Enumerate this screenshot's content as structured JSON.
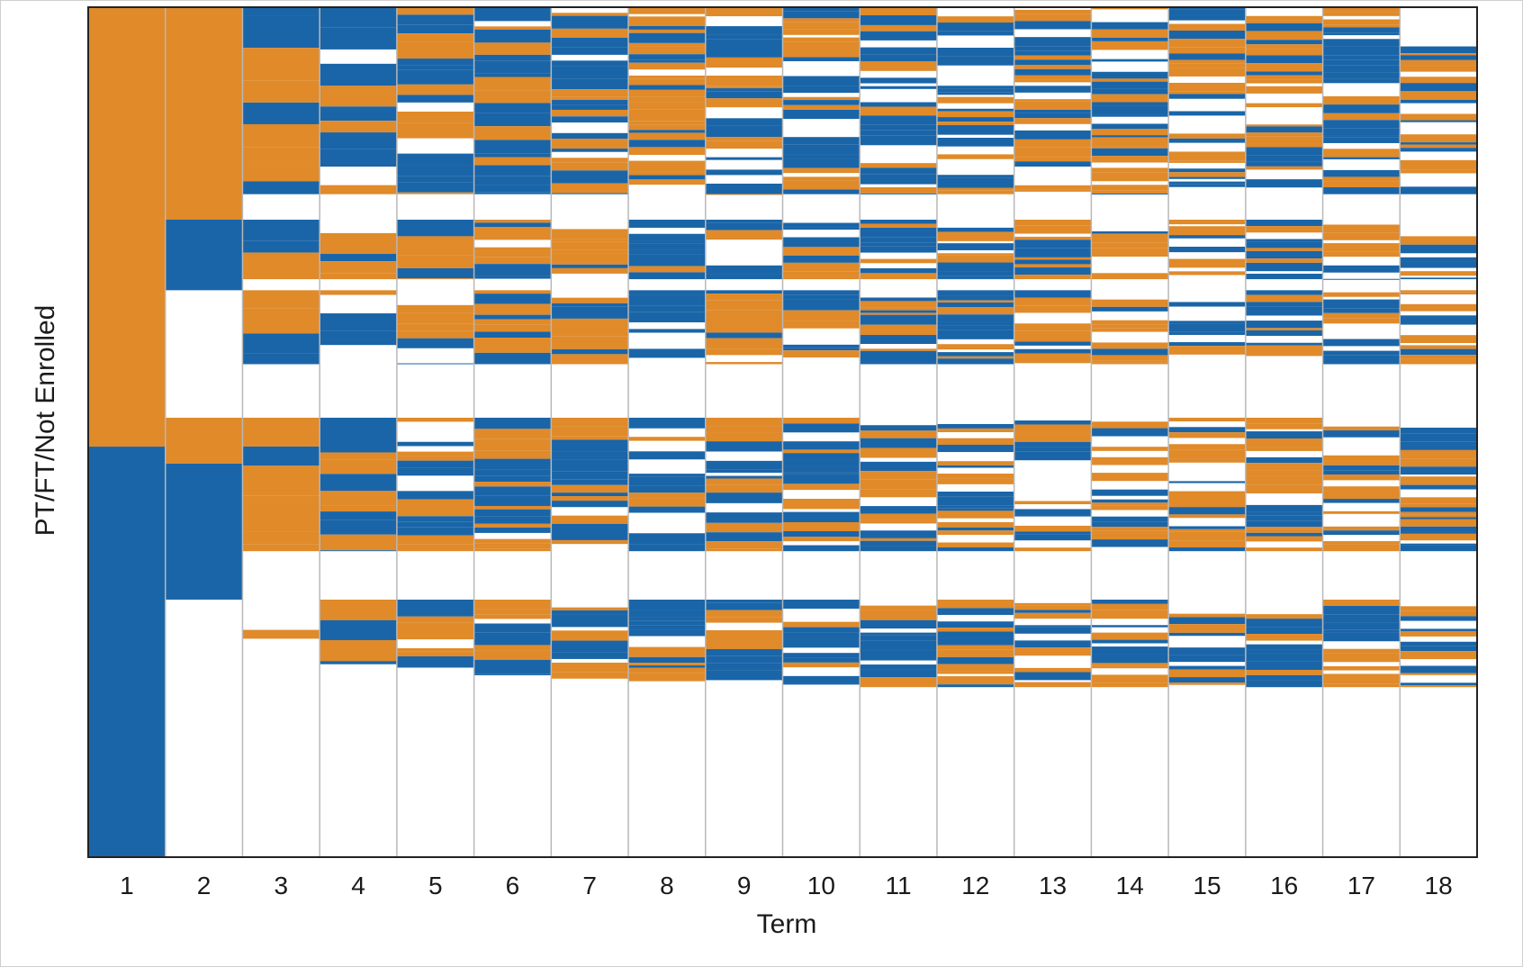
{
  "chart_data": {
    "type": "sequence-index-plot",
    "xlabel": "Term",
    "ylabel": "PT/FT/Not Enrolled",
    "categories": [
      "1",
      "2",
      "3",
      "4",
      "5",
      "6",
      "7",
      "8",
      "9",
      "10",
      "11",
      "12",
      "13",
      "14",
      "15",
      "16",
      "17",
      "18"
    ],
    "ylim": [
      0,
      1
    ],
    "states": [
      {
        "name": "PT",
        "color": "#e08a2a"
      },
      {
        "name": "FT",
        "color": "#1a65a8"
      }
    ],
    "term1": [
      {
        "state": "PT",
        "from": 0.0,
        "to": 0.517
      },
      {
        "state": "FT",
        "from": 0.517,
        "to": 1.0
      }
    ],
    "term2": [
      {
        "state": "PT",
        "from": 0.0,
        "to": 0.25
      },
      {
        "state": "FT",
        "from": 0.25,
        "to": 0.333
      },
      {
        "state": "PT",
        "from": 0.483,
        "to": 0.537
      },
      {
        "state": "FT",
        "from": 0.537,
        "to": 0.697
      }
    ],
    "active_fraction_by_term": [
      1.0,
      0.697,
      0.743,
      0.773,
      0.777,
      0.786,
      0.79,
      0.793,
      0.795,
      0.797,
      0.801,
      0.803,
      0.805,
      0.805,
      0.805,
      0.806,
      0.806,
      0.806
    ]
  }
}
